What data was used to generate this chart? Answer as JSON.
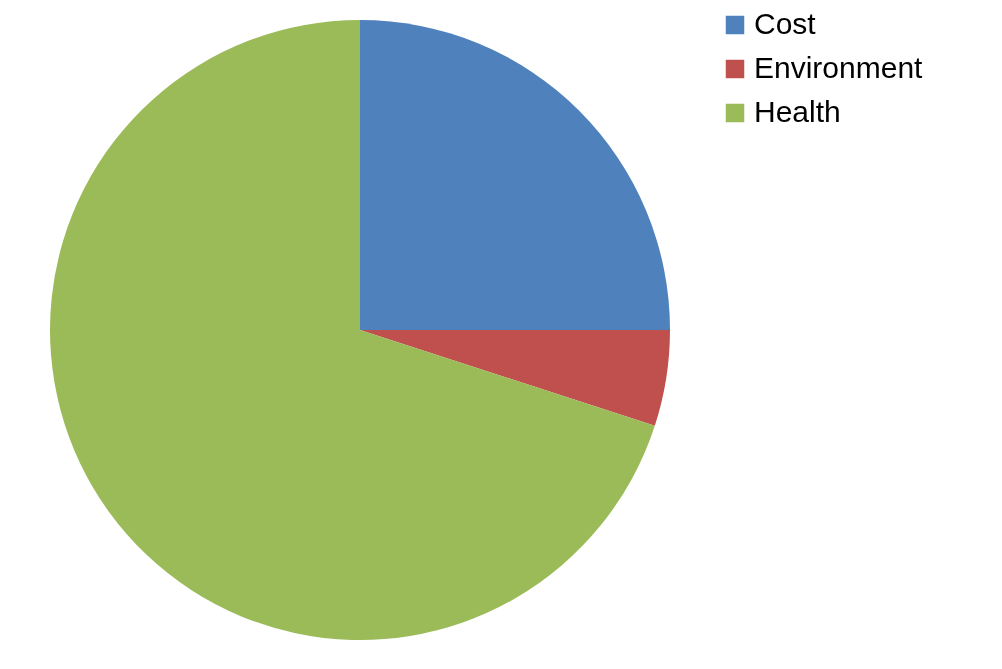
{
  "chart_data": {
    "type": "pie",
    "categories": [
      "Cost",
      "Environment",
      "Health"
    ],
    "values": [
      25,
      5,
      70
    ],
    "colors": [
      "#4f81bd",
      "#c0504d",
      "#9bbb59"
    ],
    "legend": "right"
  }
}
